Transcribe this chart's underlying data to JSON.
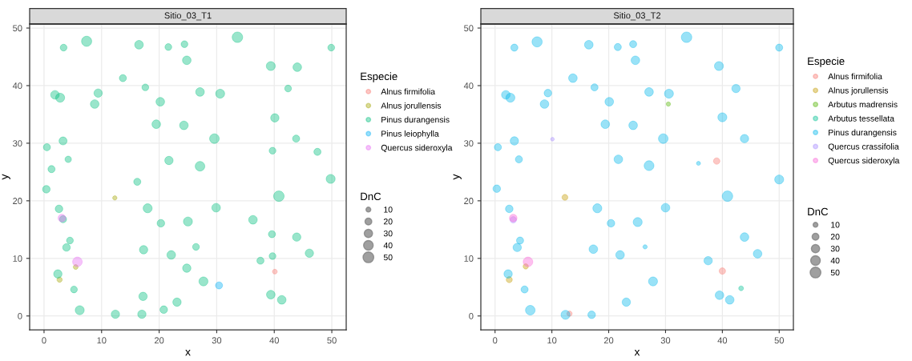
{
  "chart_data": [
    {
      "type": "bubble",
      "title": "Sitio_03_T1",
      "xlabel": "x",
      "ylabel": "y",
      "legend_title": "Especie",
      "annotations": [
        "DnC"
      ],
      "size_legend": [
        10,
        20,
        30,
        40,
        50
      ],
      "xlim": [
        -2.5,
        52.5
      ],
      "ylim": [
        -2.4,
        50.7
      ],
      "xticks": [
        0,
        10,
        20,
        30,
        40,
        50
      ],
      "yticks": [
        0,
        10,
        20,
        30,
        40,
        50
      ],
      "grid": true,
      "legend": "right",
      "marker": "circle",
      "series": [
        {
          "name": "Alnus firmifolia",
          "color": "#f8766d",
          "x": [
            40.1
          ],
          "values": [
            7.7
          ],
          "sizes": [
            10
          ]
        },
        {
          "name": "Alnus jorullensis",
          "color": "#a3a500",
          "x": [
            12.3,
            5.5,
            2.7
          ],
          "values": [
            20.5,
            8.5,
            6.3
          ],
          "sizes": [
            8,
            10,
            12
          ]
        },
        {
          "name": "Pinus durangensis",
          "color": "#00bf7d",
          "x": [
            3.4,
            7.4,
            16.5,
            21.6,
            24.4,
            33.6,
            49.9,
            24.8,
            39.4,
            44.0,
            13.7,
            17.6,
            42.4,
            1.9,
            2.8,
            9.4,
            8.8,
            20.2,
            27.1,
            30.6,
            40.1,
            19.5,
            24.3,
            29.6,
            3.3,
            0.5,
            43.8,
            39.7,
            47.5,
            4.2,
            1.3,
            21.7,
            27.1,
            0.4,
            16.2,
            49.8,
            40.8,
            2.6,
            18.0,
            29.9,
            36.3,
            20.3,
            25.0,
            3.3,
            39.6,
            43.9,
            4.5,
            3.9,
            17.3,
            26.4,
            22.1,
            46.1,
            39.7,
            37.6,
            24.8,
            2.4,
            27.7,
            5.2,
            17.2,
            39.4,
            41.3,
            23.1,
            6.2,
            20.8,
            12.4,
            17.0
          ],
          "values": [
            46.6,
            47.7,
            47.1,
            46.7,
            47.2,
            48.4,
            46.6,
            44.4,
            43.4,
            43.2,
            41.3,
            39.7,
            39.5,
            38.4,
            37.9,
            38.7,
            36.8,
            37.2,
            38.9,
            38.6,
            34.4,
            33.3,
            33.1,
            30.8,
            30.4,
            29.3,
            30.8,
            28.7,
            28.5,
            27.2,
            25.5,
            27.0,
            26.0,
            22.0,
            23.3,
            23.8,
            20.8,
            18.6,
            18.7,
            18.8,
            16.7,
            16.1,
            16.4,
            16.8,
            14.2,
            13.7,
            13.1,
            11.9,
            11.5,
            12.0,
            10.6,
            10.9,
            10.4,
            9.6,
            8.3,
            7.3,
            6.0,
            4.6,
            3.4,
            3.7,
            2.8,
            2.4,
            1.0,
            1.1,
            0.3,
            0.3
          ],
          "sizes": [
            20,
            45,
            32,
            20,
            20,
            48,
            20,
            32,
            35,
            32,
            22,
            20,
            20,
            32,
            35,
            30,
            32,
            32,
            32,
            35,
            30,
            32,
            32,
            40,
            28,
            22,
            22,
            20,
            22,
            18,
            22,
            30,
            40,
            25,
            22,
            35,
            48,
            25,
            35,
            32,
            32,
            25,
            35,
            22,
            22,
            30,
            20,
            25,
            30,
            20,
            32,
            30,
            20,
            22,
            30,
            30,
            35,
            20,
            30,
            32,
            32,
            30,
            35,
            25,
            30,
            30
          ]
        },
        {
          "name": "Pinus leiophylla",
          "color": "#00b0f6",
          "x": [
            30.4
          ],
          "values": [
            5.3
          ],
          "sizes": [
            22
          ]
        },
        {
          "name": "Quercus sideroxyla",
          "color": "#e76bf3",
          "x": [
            3.1,
            5.8
          ],
          "values": [
            17.0,
            9.4
          ],
          "sizes": [
            25,
            40
          ]
        }
      ]
    },
    {
      "type": "bubble",
      "title": "Sitio_03_T2",
      "xlabel": "x",
      "ylabel": "y",
      "legend_title": "Especie",
      "annotations": [
        "DnC"
      ],
      "size_legend": [
        10,
        20,
        30,
        40,
        50
      ],
      "xlim": [
        -2.5,
        52.5
      ],
      "ylim": [
        -2.4,
        50.7
      ],
      "xticks": [
        0,
        10,
        20,
        30,
        40,
        50
      ],
      "yticks": [
        0,
        10,
        20,
        30,
        40,
        50
      ],
      "grid": true,
      "legend": "right",
      "marker": "circle",
      "series": [
        {
          "name": "Alnus firmifolia",
          "color": "#f8766d",
          "x": [
            39.0,
            40.0,
            13.1
          ],
          "values": [
            26.9,
            7.8,
            0.4
          ],
          "sizes": [
            18,
            18,
            12
          ]
        },
        {
          "name": "Alnus jorullensis",
          "color": "#c49a00",
          "x": [
            12.3,
            5.4,
            2.5
          ],
          "values": [
            20.6,
            8.6,
            6.3
          ],
          "sizes": [
            15,
            12,
            16
          ]
        },
        {
          "name": "Arbutus madrensis",
          "color": "#53b400",
          "x": [
            30.5
          ],
          "values": [
            36.8
          ],
          "sizes": [
            8
          ]
        },
        {
          "name": "Arbutus tessellata",
          "color": "#00c094",
          "x": [
            43.3
          ],
          "values": [
            4.8
          ],
          "sizes": [
            10
          ]
        },
        {
          "name": "Pinus durangensis",
          "color": "#00b6eb",
          "x": [
            3.4,
            7.4,
            16.5,
            21.6,
            24.3,
            33.7,
            50.0,
            24.7,
            39.4,
            13.7,
            17.5,
            42.4,
            1.9,
            2.7,
            9.3,
            8.7,
            20.1,
            27.1,
            30.6,
            40.0,
            19.4,
            24.3,
            29.6,
            3.4,
            0.5,
            43.9,
            4.2,
            21.7,
            27.1,
            35.8,
            0.3,
            50.0,
            40.9,
            2.5,
            18.0,
            30.0,
            20.4,
            25.1,
            43.9,
            4.4,
            3.9,
            17.3,
            26.4,
            22.0,
            46.2,
            37.5,
            2.3,
            27.8,
            5.2,
            39.5,
            41.3,
            23.1,
            6.2,
            12.4,
            17.0
          ],
          "values": [
            46.6,
            47.6,
            47.1,
            46.7,
            47.2,
            48.4,
            46.6,
            44.4,
            43.4,
            41.3,
            39.7,
            39.5,
            38.4,
            37.9,
            38.7,
            36.8,
            37.2,
            38.9,
            38.6,
            34.5,
            33.3,
            33.1,
            30.8,
            30.4,
            29.3,
            30.8,
            27.2,
            27.2,
            26.1,
            26.5,
            22.1,
            23.7,
            20.8,
            18.6,
            18.7,
            18.8,
            16.1,
            16.3,
            13.7,
            13.1,
            11.9,
            11.6,
            12.0,
            10.6,
            10.8,
            9.6,
            7.3,
            6.0,
            4.6,
            3.6,
            2.8,
            2.4,
            1.0,
            0.2,
            0.2
          ],
          "sizes": [
            22,
            45,
            32,
            22,
            22,
            48,
            22,
            32,
            35,
            32,
            22,
            30,
            32,
            35,
            25,
            32,
            32,
            32,
            35,
            35,
            32,
            32,
            40,
            30,
            22,
            30,
            22,
            32,
            42,
            7,
            25,
            35,
            48,
            25,
            35,
            32,
            25,
            35,
            32,
            22,
            30,
            32,
            8,
            32,
            32,
            30,
            30,
            35,
            22,
            32,
            32,
            30,
            40,
            35,
            25
          ]
        },
        {
          "name": "Quercus crassifolia",
          "color": "#a58aff",
          "x": [
            10.1,
            3.2
          ],
          "values": [
            30.7,
            16.7
          ],
          "sizes": [
            6,
            18
          ]
        },
        {
          "name": "Quercus sideroxyla",
          "color": "#fb61d7",
          "x": [
            3.2,
            5.8
          ],
          "values": [
            17.0,
            9.4
          ],
          "sizes": [
            25,
            40
          ]
        }
      ]
    }
  ]
}
